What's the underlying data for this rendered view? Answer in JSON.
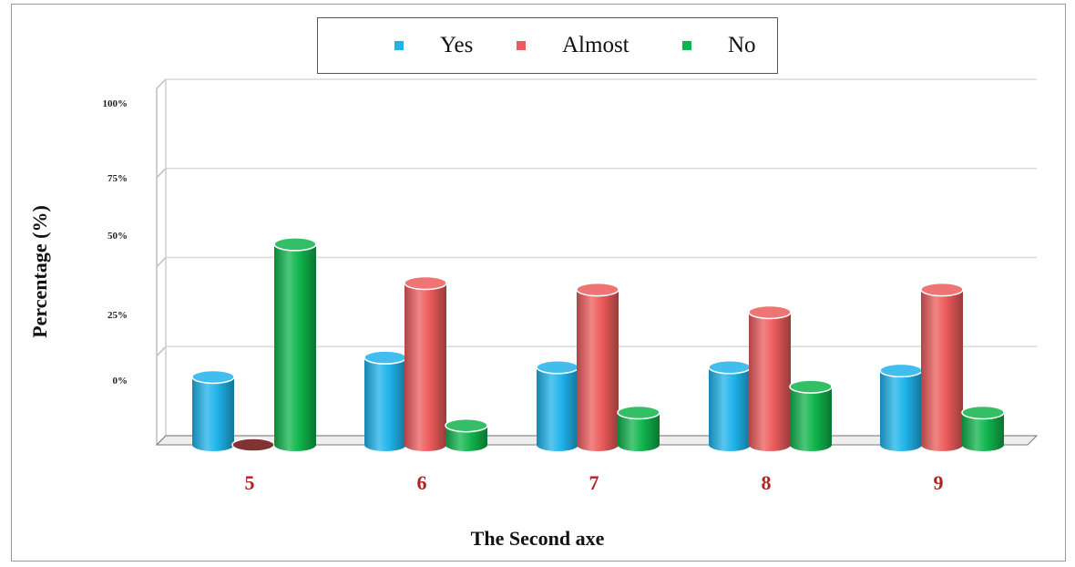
{
  "chart_data": {
    "type": "bar",
    "categories": [
      "5",
      "6",
      "7",
      "8",
      "9"
    ],
    "series": [
      {
        "name": "Yes",
        "color": "#1fb3ea",
        "values": [
          21,
          27,
          24,
          24,
          23
        ]
      },
      {
        "name": "Almost",
        "color": "#ec5b5b",
        "values": [
          0,
          50,
          48,
          41,
          48
        ]
      },
      {
        "name": "No",
        "color": "#10b44c",
        "values": [
          62,
          6,
          10,
          18,
          10
        ]
      }
    ],
    "yticks": [
      "100%",
      "75%",
      "50%",
      "25%",
      "0%"
    ],
    "xlabel": "The Second axe",
    "ylabel": "Percentage (%)",
    "ylim": [
      0,
      100
    ],
    "legend_position": "top-center",
    "grid": true
  }
}
